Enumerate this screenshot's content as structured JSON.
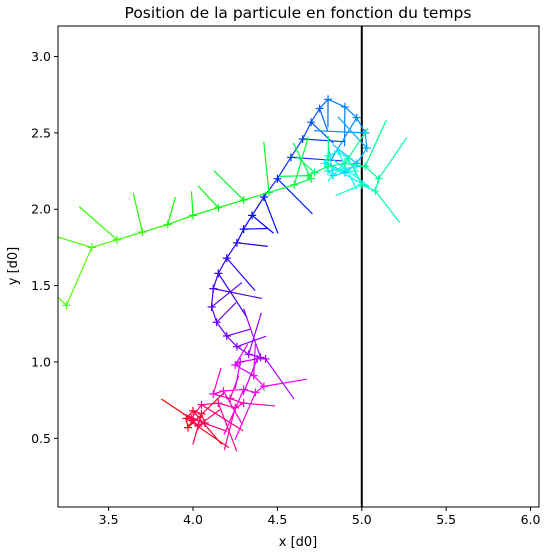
{
  "chart_data": {
    "type": "scatter",
    "title": "Position de la particule en fonction du temps",
    "xlabel": "x [d0]",
    "ylabel": "y [d0]",
    "xlim": [
      3.2,
      6.05
    ],
    "ylim": [
      0.05,
      3.2
    ],
    "xticks": [
      "3.5",
      "4.0",
      "4.5",
      "5.0",
      "5.5",
      "6.0"
    ],
    "yticks": [
      "0.5",
      "1.0",
      "1.5",
      "2.0",
      "2.5",
      "3.0"
    ],
    "grid": false,
    "legend": "none",
    "colormap": "hsv",
    "marker": "+",
    "series": [
      {
        "style": "points with velocity whiskers, colored by time",
        "x": [
          4.0,
          3.97,
          3.96,
          4.0,
          4.05,
          4.07,
          4.03,
          3.99,
          4.05,
          4.15,
          4.25,
          4.3,
          4.22,
          4.12,
          4.18,
          4.3,
          4.37,
          4.42,
          4.36,
          4.25,
          4.28,
          4.38,
          4.43,
          4.4,
          4.33,
          4.26,
          4.2,
          4.14,
          4.11,
          4.12,
          4.15,
          4.2,
          4.26,
          4.3,
          4.35,
          4.42,
          4.5,
          4.58,
          4.65,
          4.7,
          4.75,
          4.8,
          4.9,
          4.97,
          5.02,
          5.03,
          4.97,
          4.9,
          4.83,
          4.8,
          4.78,
          4.8,
          4.86,
          4.92,
          4.96,
          5.0,
          5.08,
          5.1,
          5.02,
          4.9,
          4.8,
          4.72,
          4.68,
          4.7,
          4.6,
          4.45,
          4.3,
          4.15,
          4.0,
          3.85,
          3.7,
          3.55,
          3.4,
          3.25
        ],
        "y": [
          0.62,
          0.57,
          0.63,
          0.68,
          0.66,
          0.6,
          0.58,
          0.63,
          0.72,
          0.73,
          0.7,
          0.73,
          0.76,
          0.79,
          0.81,
          0.82,
          0.8,
          0.84,
          0.91,
          0.98,
          1.0,
          1.02,
          1.02,
          1.03,
          1.05,
          1.1,
          1.17,
          1.26,
          1.36,
          1.48,
          1.58,
          1.68,
          1.78,
          1.87,
          1.96,
          2.08,
          2.2,
          2.34,
          2.46,
          2.57,
          2.66,
          2.72,
          2.67,
          2.6,
          2.5,
          2.4,
          2.3,
          2.24,
          2.22,
          2.25,
          2.3,
          2.35,
          2.38,
          2.33,
          2.25,
          2.16,
          2.12,
          2.2,
          2.28,
          2.3,
          2.28,
          2.24,
          2.22,
          2.2,
          2.16,
          2.11,
          2.06,
          2.01,
          1.96,
          1.9,
          1.85,
          1.8,
          1.75,
          1.37
        ]
      }
    ],
    "annotations": [
      {
        "type": "vline",
        "x": 5.0,
        "color": "#000000"
      }
    ]
  }
}
